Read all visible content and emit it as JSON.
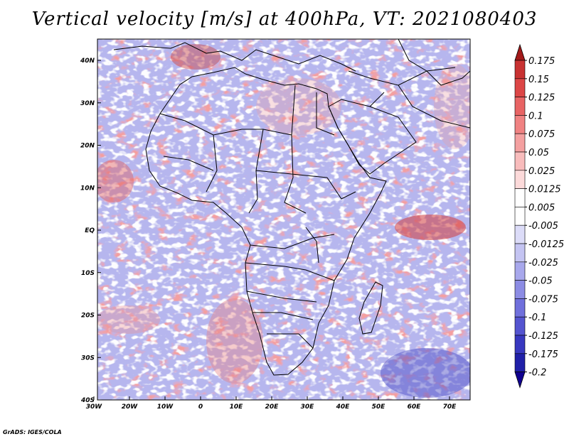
{
  "title": "Vertical velocity [m/s] at 400hPa, VT: 2021080403",
  "footer": "GrADS: IGES/COLA",
  "lat_ticks": [
    "40N",
    "30N",
    "20N",
    "10N",
    "EQ",
    "10S",
    "20S",
    "30S",
    "40S"
  ],
  "lon_ticks": [
    "30W",
    "20W",
    "10W",
    "0",
    "10E",
    "20E",
    "30E",
    "40E",
    "50E",
    "60E",
    "70E"
  ],
  "colorbar": {
    "levels": [
      "0.175",
      "0.15",
      "0.125",
      "0.1",
      "0.075",
      "0.05",
      "0.025",
      "0.0125",
      "0.005",
      "-0.005",
      "-0.0125",
      "-0.025",
      "-0.05",
      "-0.075",
      "-0.1",
      "-0.125",
      "-0.175",
      "-0.2"
    ],
    "colors": [
      "#a31a1a",
      "#c83232",
      "#dc4646",
      "#e86464",
      "#f08282",
      "#f4a0a0",
      "#f8bcbc",
      "#fcdada",
      "#ffffff",
      "#ffffff",
      "#dcdcf8",
      "#c4c4f2",
      "#a8a8ec",
      "#8c8ce4",
      "#7070dc",
      "#5454d0",
      "#3838c0",
      "#2020a8",
      "#100090"
    ]
  }
}
